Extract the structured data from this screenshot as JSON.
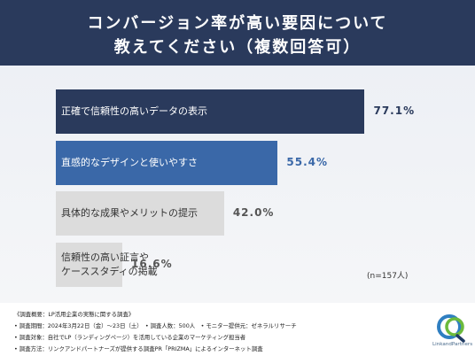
{
  "header": {
    "title_line1": "コンバージョン率が高い要因について",
    "title_line2": "教えてください（複数回答可）"
  },
  "chart_data": {
    "type": "bar",
    "orientation": "horizontal",
    "categories": [
      "正確で信頼性の高いデータの表示",
      "直感的なデザインと使いやすさ",
      "具体的な成果やメリットの提示",
      "信頼性の高い証言やケーススタディの掲載"
    ],
    "category_lines": [
      [
        "正確で信頼性の高いデータの表示"
      ],
      [
        "直感的なデザインと使いやすさ"
      ],
      [
        "具体的な成果やメリットの提示"
      ],
      [
        "信頼性の高い証言や",
        "ケーススタディの掲載"
      ]
    ],
    "values": [
      77.1,
      55.4,
      42.0,
      16.6
    ],
    "value_labels": [
      "77.1%",
      "55.4%",
      "42.0%",
      "16.6%"
    ],
    "bar_colors": [
      "#2a3a5c",
      "#3a68a8",
      "#dcdcdc",
      "#dcdcdc"
    ],
    "label_colors": [
      "#ffffff",
      "#ffffff",
      "#333333",
      "#333333"
    ],
    "value_colors": [
      "#2a3a5c",
      "#3a68a8",
      "#555555",
      "#555555"
    ],
    "xlim": [
      0,
      100
    ],
    "note": "(n=157人)"
  },
  "footer": {
    "line1": "《調査概要：LP活用企業の実態に関する調査》",
    "line2": "• 調査期間：2024年3月22日（金）〜23日（土）　• 調査人数：500人　• モニター提供元：ゼネラルリサーチ",
    "line3": "• 調査対象：自社でLP（ランディングページ）を活用している企業のマーケティング担当者",
    "line4": "• 調査方法：リンクアンドパートナーズが提供する調査PR「PRIZMA」によるインターネット調査"
  },
  "logo": {
    "text": "LinkandPartners",
    "colors": {
      "blue": "#2f7fc1",
      "green": "#6cba3c",
      "navy": "#1f3a63"
    }
  }
}
